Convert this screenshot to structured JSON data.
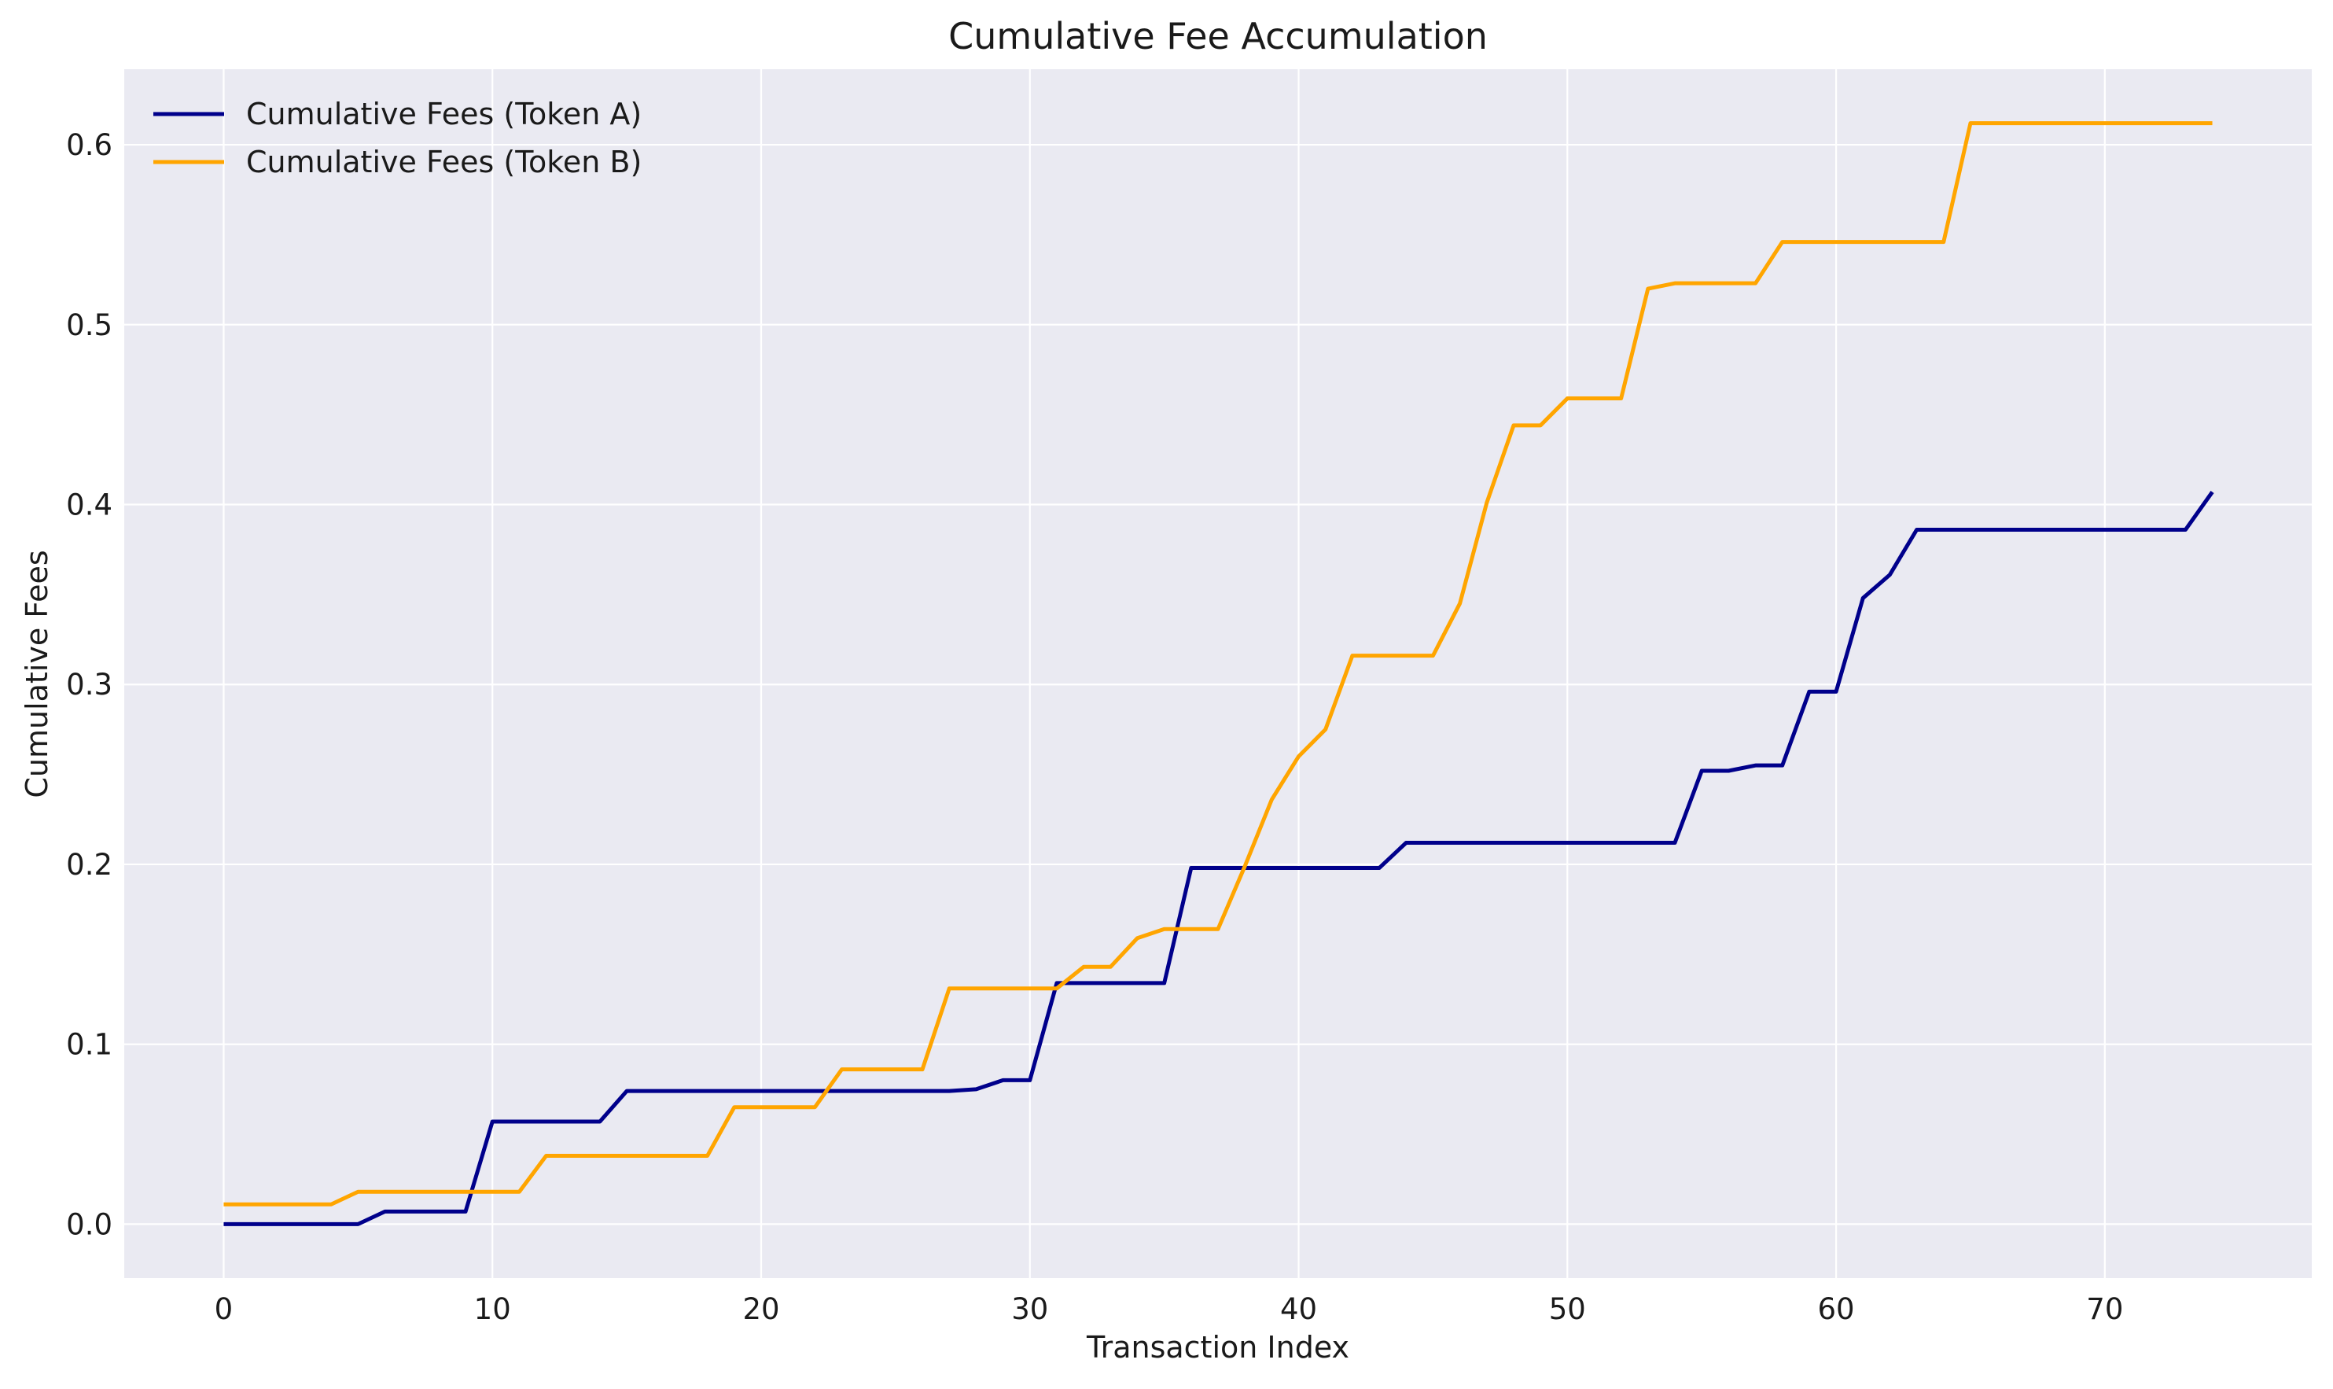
{
  "chart_data": {
    "type": "line",
    "title": "Cumulative Fee Accumulation",
    "xlabel": "Transaction Index",
    "ylabel": "Cumulative Fees",
    "xlim": [
      -3.7,
      77.7
    ],
    "ylim": [
      -0.03,
      0.642
    ],
    "xticks": [
      0,
      10,
      20,
      30,
      40,
      50,
      60,
      70
    ],
    "xtick_labels": [
      "0",
      "10",
      "20",
      "30",
      "40",
      "50",
      "60",
      "70"
    ],
    "yticks": [
      0.0,
      0.1,
      0.2,
      0.3,
      0.4,
      0.5,
      0.6
    ],
    "ytick_labels": [
      "0.0",
      "0.1",
      "0.2",
      "0.3",
      "0.4",
      "0.5",
      "0.6"
    ],
    "grid": true,
    "legend_position": "top-left",
    "plot_background": "#eaeaf2",
    "x": [
      0,
      1,
      2,
      3,
      4,
      5,
      6,
      7,
      8,
      9,
      10,
      11,
      12,
      13,
      14,
      15,
      16,
      17,
      18,
      19,
      20,
      21,
      22,
      23,
      24,
      25,
      26,
      27,
      28,
      29,
      30,
      31,
      32,
      33,
      34,
      35,
      36,
      37,
      38,
      39,
      40,
      41,
      42,
      43,
      44,
      45,
      46,
      47,
      48,
      49,
      50,
      51,
      52,
      53,
      54,
      55,
      56,
      57,
      58,
      59,
      60,
      61,
      62,
      63,
      64,
      65,
      66,
      67,
      68,
      69,
      70,
      71,
      72,
      73,
      74
    ],
    "series": [
      {
        "name": "Cumulative Fees (Token A)",
        "color": "#00008b",
        "values": [
          0.0,
          0.0,
          0.0,
          0.0,
          0.0,
          0.0,
          0.007,
          0.007,
          0.007,
          0.007,
          0.057,
          0.057,
          0.057,
          0.057,
          0.057,
          0.074,
          0.074,
          0.074,
          0.074,
          0.074,
          0.074,
          0.074,
          0.074,
          0.074,
          0.074,
          0.074,
          0.074,
          0.074,
          0.075,
          0.08,
          0.08,
          0.134,
          0.134,
          0.134,
          0.134,
          0.134,
          0.198,
          0.198,
          0.198,
          0.198,
          0.198,
          0.198,
          0.198,
          0.198,
          0.212,
          0.212,
          0.212,
          0.212,
          0.212,
          0.212,
          0.212,
          0.212,
          0.212,
          0.212,
          0.212,
          0.252,
          0.252,
          0.255,
          0.255,
          0.296,
          0.296,
          0.348,
          0.361,
          0.386,
          0.386,
          0.386,
          0.386,
          0.386,
          0.386,
          0.386,
          0.386,
          0.386,
          0.386,
          0.386,
          0.407
        ]
      },
      {
        "name": "Cumulative Fees (Token B)",
        "color": "#ffa500",
        "values": [
          0.011,
          0.011,
          0.011,
          0.011,
          0.011,
          0.018,
          0.018,
          0.018,
          0.018,
          0.018,
          0.018,
          0.018,
          0.038,
          0.038,
          0.038,
          0.038,
          0.038,
          0.038,
          0.038,
          0.065,
          0.065,
          0.065,
          0.065,
          0.086,
          0.086,
          0.086,
          0.086,
          0.131,
          0.131,
          0.131,
          0.131,
          0.131,
          0.143,
          0.143,
          0.159,
          0.164,
          0.164,
          0.164,
          0.199,
          0.236,
          0.26,
          0.275,
          0.316,
          0.316,
          0.316,
          0.316,
          0.345,
          0.401,
          0.444,
          0.444,
          0.459,
          0.459,
          0.459,
          0.52,
          0.523,
          0.523,
          0.523,
          0.523,
          0.546,
          0.546,
          0.546,
          0.546,
          0.546,
          0.546,
          0.546,
          0.612,
          0.612,
          0.612,
          0.612,
          0.612,
          0.612,
          0.612,
          0.612,
          0.612,
          0.612
        ]
      }
    ]
  }
}
